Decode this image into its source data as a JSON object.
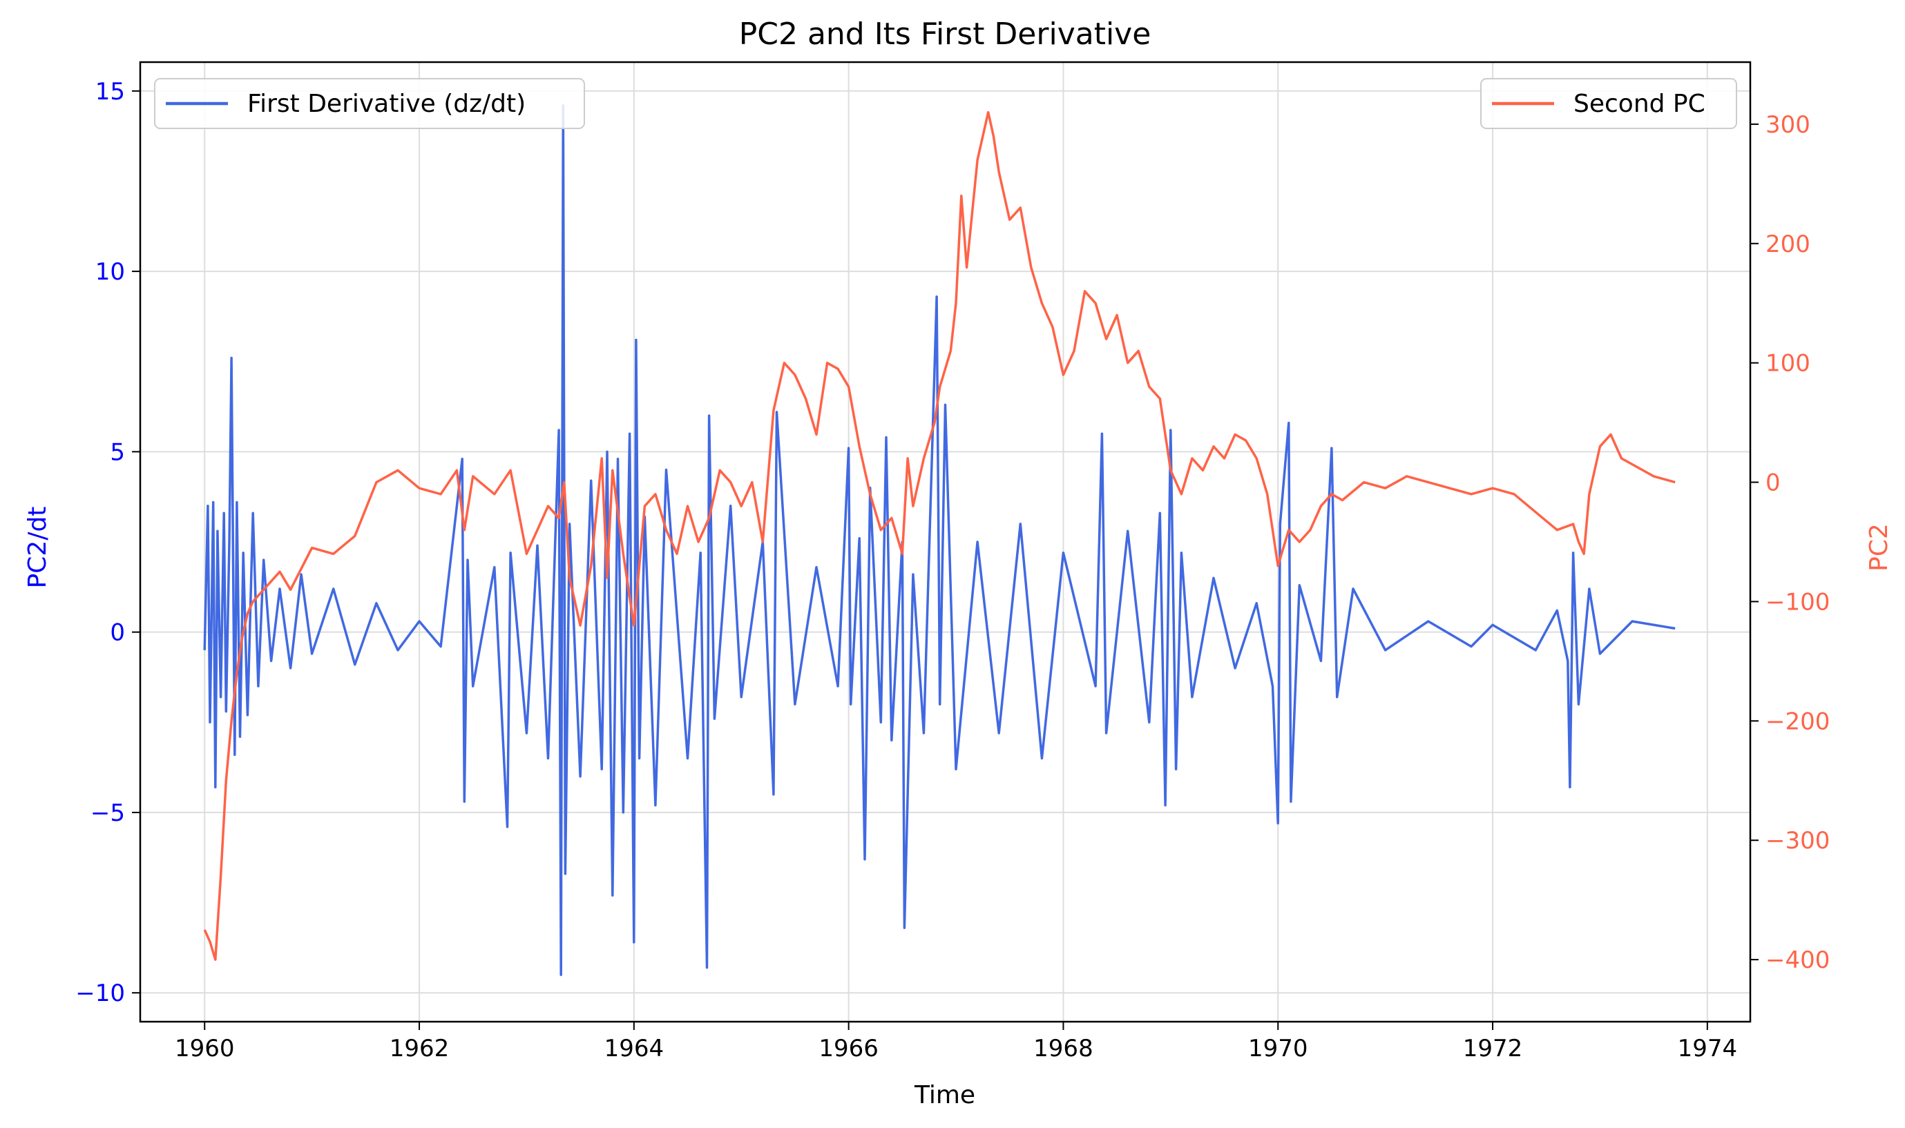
{
  "chart_data": {
    "type": "line",
    "title": "PC2 and Its First Derivative",
    "xlabel": "Time",
    "xlim": [
      1959.4,
      1974.4
    ],
    "x_ticks": [
      1960,
      1962,
      1964,
      1966,
      1968,
      1970,
      1972,
      1974
    ],
    "grid": true,
    "colors": {
      "derivative": "#4169e1",
      "pc": "#ff6347",
      "left_axis": "#0000ff",
      "right_axis": "#ff6347"
    },
    "left_axis": {
      "label": "PC2/dt",
      "ylim": [
        -10.8,
        15.8
      ],
      "ticks": [
        -10,
        -5,
        0,
        5,
        10,
        15
      ],
      "tick_labels": [
        "−10",
        "−5",
        "0",
        "5",
        "10",
        "15"
      ]
    },
    "right_axis": {
      "label": "PC2",
      "ylim": [
        -452,
        352
      ],
      "ticks": [
        -400,
        -300,
        -200,
        -100,
        0,
        100,
        200,
        300
      ],
      "tick_labels": [
        "−400",
        "−300",
        "−200",
        "−100",
        "0",
        "100",
        "200",
        "300"
      ]
    },
    "legends": [
      {
        "placement": "upper-left",
        "entries": [
          "First Derivative (dz/dt)"
        ]
      },
      {
        "placement": "upper-right",
        "entries": [
          "Second PC"
        ]
      }
    ],
    "series": [
      {
        "name": "First Derivative (dz/dt)",
        "axis": "left",
        "x": [
          1960.0,
          1960.03,
          1960.05,
          1960.08,
          1960.1,
          1960.12,
          1960.15,
          1960.18,
          1960.2,
          1960.23,
          1960.25,
          1960.28,
          1960.3,
          1960.33,
          1960.36,
          1960.4,
          1960.45,
          1960.5,
          1960.55,
          1960.62,
          1960.7,
          1960.8,
          1960.9,
          1961.0,
          1961.2,
          1961.4,
          1961.6,
          1961.8,
          1962.0,
          1962.2,
          1962.4,
          1962.42,
          1962.45,
          1962.5,
          1962.7,
          1962.82,
          1962.85,
          1963.0,
          1963.1,
          1963.2,
          1963.3,
          1963.32,
          1963.34,
          1963.36,
          1963.4,
          1963.5,
          1963.6,
          1963.7,
          1963.75,
          1963.8,
          1963.85,
          1963.9,
          1963.96,
          1964.0,
          1964.02,
          1964.05,
          1964.1,
          1964.2,
          1964.3,
          1964.5,
          1964.62,
          1964.68,
          1964.7,
          1964.75,
          1964.9,
          1965.0,
          1965.2,
          1965.3,
          1965.33,
          1965.5,
          1965.7,
          1965.9,
          1966.0,
          1966.02,
          1966.1,
          1966.15,
          1966.2,
          1966.3,
          1966.35,
          1966.4,
          1966.5,
          1966.52,
          1966.6,
          1966.7,
          1966.82,
          1966.85,
          1966.9,
          1967.0,
          1967.2,
          1967.4,
          1967.6,
          1967.8,
          1968.0,
          1968.3,
          1968.36,
          1968.4,
          1968.6,
          1968.8,
          1968.9,
          1968.95,
          1969.0,
          1969.05,
          1969.1,
          1969.2,
          1969.4,
          1969.6,
          1969.8,
          1969.95,
          1970.0,
          1970.02,
          1970.1,
          1970.12,
          1970.2,
          1970.4,
          1970.5,
          1970.55,
          1970.7,
          1971.0,
          1971.4,
          1971.8,
          1972.0,
          1972.4,
          1972.6,
          1972.7,
          1972.72,
          1972.75,
          1972.8,
          1972.9,
          1973.0,
          1973.3,
          1973.7
        ],
        "values": [
          -0.5,
          3.5,
          -2.5,
          3.6,
          -4.3,
          2.8,
          -1.8,
          3.3,
          -2.2,
          2.5,
          7.6,
          -3.4,
          3.6,
          -2.9,
          2.2,
          -2.3,
          3.3,
          -1.5,
          2.0,
          -0.8,
          1.2,
          -1.0,
          1.6,
          -0.6,
          1.2,
          -0.9,
          0.8,
          -0.5,
          0.3,
          -0.4,
          4.8,
          -4.7,
          2.0,
          -1.5,
          1.8,
          -5.4,
          2.2,
          -2.8,
          2.4,
          -3.5,
          5.6,
          -9.5,
          14.6,
          -6.7,
          3.0,
          -4.0,
          4.2,
          -3.8,
          5.0,
          -7.3,
          4.8,
          -5.0,
          5.5,
          -8.6,
          8.1,
          -3.5,
          3.2,
          -4.8,
          4.5,
          -3.5,
          2.2,
          -9.3,
          6.0,
          -2.4,
          3.5,
          -1.8,
          2.5,
          -4.5,
          6.1,
          -2.0,
          1.8,
          -1.5,
          5.1,
          -2.0,
          2.6,
          -6.3,
          4.0,
          -2.5,
          5.4,
          -3.0,
          2.5,
          -8.2,
          1.6,
          -2.8,
          9.3,
          -2.0,
          6.3,
          -3.8,
          2.5,
          -2.8,
          3.0,
          -3.5,
          2.2,
          -1.5,
          5.5,
          -2.8,
          2.8,
          -2.5,
          3.3,
          -4.8,
          5.6,
          -3.8,
          2.2,
          -1.8,
          1.5,
          -1.0,
          0.8,
          -1.5,
          -5.3,
          3.0,
          5.8,
          -4.7,
          1.3,
          -0.8,
          5.1,
          -1.8,
          1.2,
          -0.5,
          0.3,
          -0.4,
          0.2,
          -0.5,
          0.6,
          -0.8,
          -4.3,
          2.2,
          -2.0,
          1.2,
          -0.6,
          0.3,
          0.1
        ]
      },
      {
        "name": "Second PC",
        "axis": "right",
        "x": [
          1960.0,
          1960.05,
          1960.1,
          1960.15,
          1960.2,
          1960.25,
          1960.3,
          1960.35,
          1960.4,
          1960.45,
          1960.5,
          1960.6,
          1960.7,
          1960.8,
          1961.0,
          1961.2,
          1961.4,
          1961.6,
          1961.8,
          1962.0,
          1962.2,
          1962.35,
          1962.42,
          1962.5,
          1962.7,
          1962.85,
          1963.0,
          1963.1,
          1963.2,
          1963.3,
          1963.35,
          1963.4,
          1963.5,
          1963.6,
          1963.7,
          1963.75,
          1963.8,
          1963.9,
          1964.0,
          1964.1,
          1964.2,
          1964.3,
          1964.4,
          1964.5,
          1964.6,
          1964.7,
          1964.8,
          1964.9,
          1965.0,
          1965.1,
          1965.2,
          1965.3,
          1965.35,
          1965.4,
          1965.5,
          1965.6,
          1965.7,
          1965.8,
          1965.9,
          1966.0,
          1966.1,
          1966.2,
          1966.3,
          1966.4,
          1966.5,
          1966.55,
          1966.6,
          1966.7,
          1966.8,
          1966.85,
          1966.95,
          1967.0,
          1967.05,
          1967.1,
          1967.2,
          1967.3,
          1967.35,
          1967.4,
          1967.5,
          1967.6,
          1967.7,
          1967.8,
          1967.9,
          1968.0,
          1968.1,
          1968.2,
          1968.3,
          1968.4,
          1968.5,
          1968.6,
          1968.7,
          1968.8,
          1968.9,
          1969.0,
          1969.1,
          1969.2,
          1969.3,
          1969.4,
          1969.5,
          1969.6,
          1969.7,
          1969.8,
          1969.9,
          1970.0,
          1970.1,
          1970.2,
          1970.3,
          1970.4,
          1970.5,
          1970.6,
          1970.8,
          1971.0,
          1971.2,
          1971.4,
          1971.6,
          1971.8,
          1972.0,
          1972.2,
          1972.4,
          1972.6,
          1972.75,
          1972.8,
          1972.85,
          1972.9,
          1973.0,
          1973.1,
          1973.2,
          1973.3,
          1973.5,
          1973.7
        ],
        "values": [
          -375,
          -385,
          -400,
          -330,
          -250,
          -200,
          -160,
          -130,
          -110,
          -100,
          -95,
          -85,
          -75,
          -90,
          -55,
          -60,
          -45,
          0,
          10,
          -5,
          -10,
          10,
          -40,
          5,
          -10,
          10,
          -60,
          -40,
          -20,
          -30,
          0,
          -80,
          -120,
          -70,
          20,
          -80,
          10,
          -60,
          -120,
          -20,
          -10,
          -40,
          -60,
          -20,
          -50,
          -30,
          10,
          0,
          -20,
          0,
          -50,
          60,
          80,
          100,
          90,
          70,
          40,
          100,
          95,
          80,
          30,
          -10,
          -40,
          -30,
          -60,
          20,
          -20,
          20,
          50,
          80,
          110,
          150,
          240,
          180,
          270,
          310,
          290,
          260,
          220,
          230,
          180,
          150,
          130,
          90,
          110,
          160,
          150,
          120,
          140,
          100,
          110,
          80,
          70,
          10,
          -10,
          20,
          10,
          30,
          20,
          40,
          35,
          20,
          -10,
          -70,
          -40,
          -50,
          -40,
          -20,
          -10,
          -15,
          0,
          -5,
          5,
          0,
          -5,
          -10,
          -5,
          -10,
          -25,
          -40,
          -35,
          -50,
          -60,
          -10,
          30,
          40,
          20,
          15,
          5,
          0
        ]
      }
    ]
  }
}
